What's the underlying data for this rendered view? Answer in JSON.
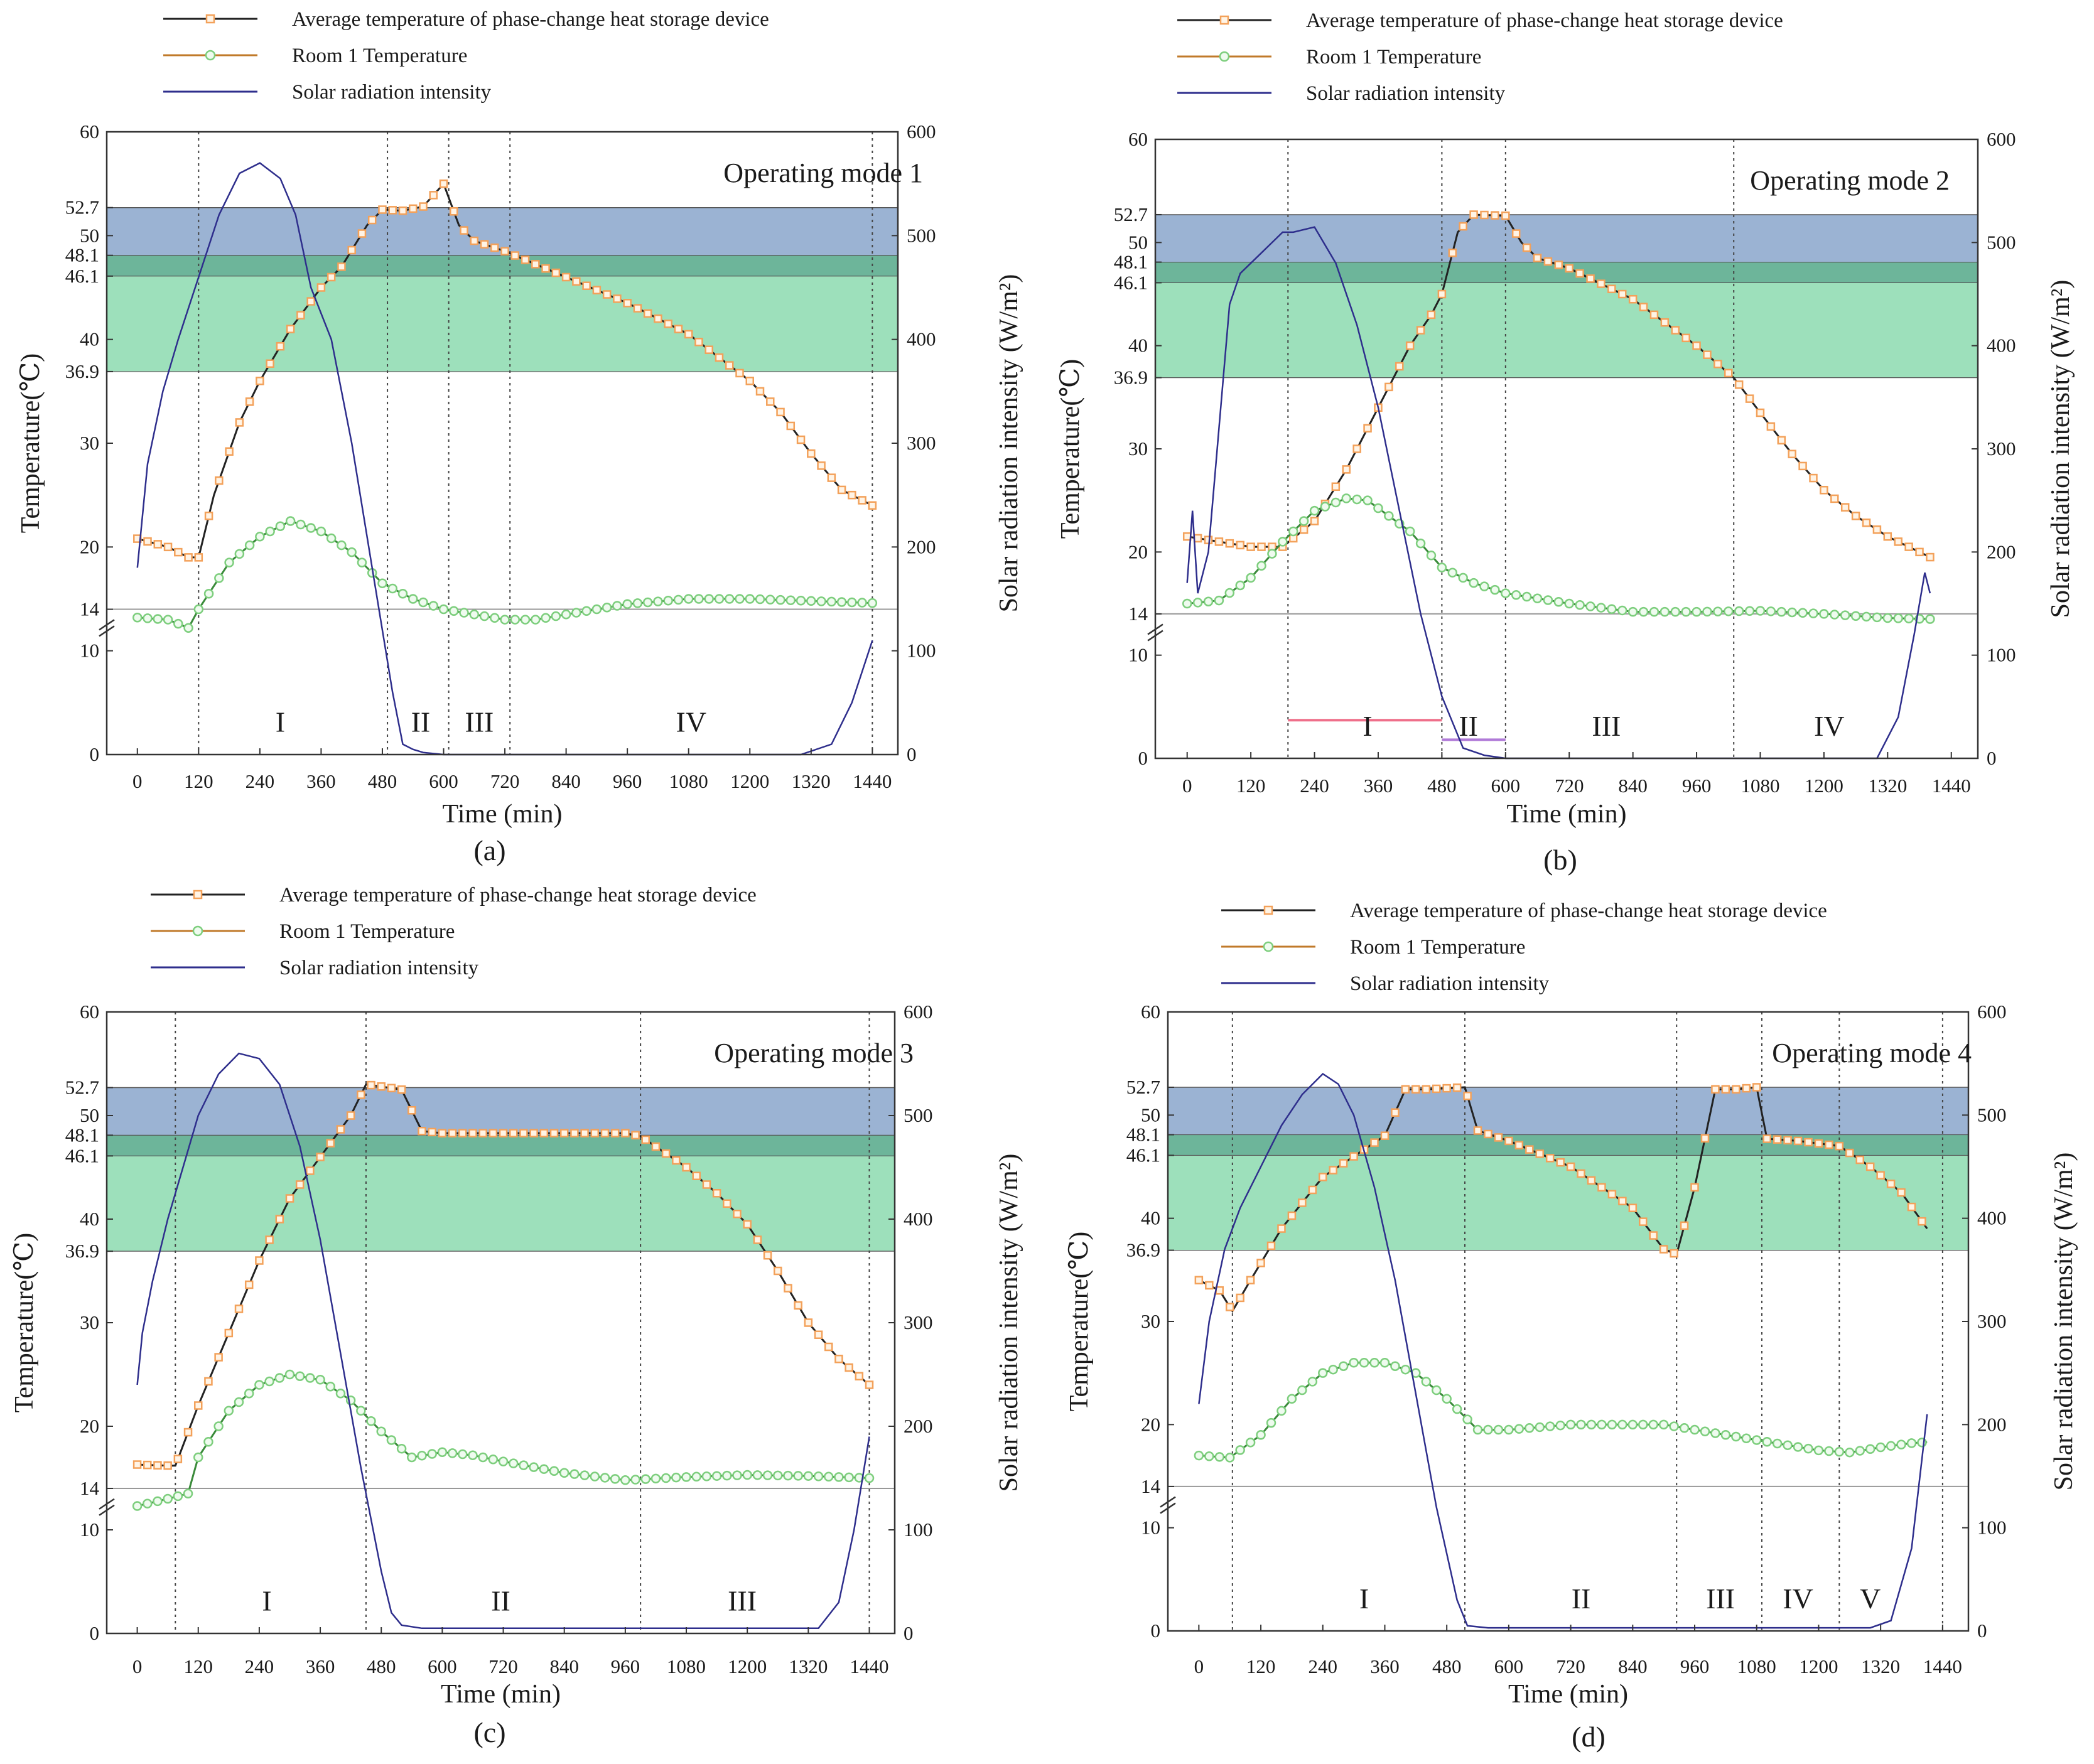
{
  "figure": {
    "captions": [
      "(a)",
      "(b)",
      "(c)",
      "(d)"
    ]
  },
  "colors": {
    "phase_band": "#9bb3d3",
    "overlap_band": "#6db59a",
    "storage_band": "#9de0bb",
    "pcm_line": "#222222",
    "pcm_marker": "#f3a15a",
    "room_line": "#c07a2a",
    "room_marker": "#7dce7d",
    "solar_line": "#2e2e8c",
    "axis": "#333333",
    "guide": "#888888",
    "mode2_bar1": "#ef6f8a",
    "mode2_bar2": "#b07ad8"
  },
  "chart_data": [
    {
      "type": "line",
      "panel": "(a)",
      "title": "Operating mode 1",
      "legend": [
        "Average temperature of phase-change heat storage device",
        "Room 1 Temperature",
        "Solar radiation intensity"
      ],
      "xlabel": "Time (min)",
      "ylabel": "Temperature(℃)",
      "y2label": "Solar radiation intensity (W/m²)",
      "xlim": [
        -60,
        1490
      ],
      "ylim": [
        0,
        60
      ],
      "y2lim": [
        0,
        600
      ],
      "x_ticks": [
        "0",
        "120",
        "240",
        "360",
        "480",
        "600",
        "720",
        "840",
        "960",
        "1080",
        "1200",
        "1320",
        "1440"
      ],
      "y_ticks": [
        "0",
        "10",
        "14",
        "20",
        "30",
        "36.9",
        "40",
        "46.1",
        "48.1",
        "50",
        "52.7",
        "60"
      ],
      "y2_ticks": [
        "0",
        "100",
        "200",
        "300",
        "400",
        "500",
        "600"
      ],
      "bands": [
        [
          36.9,
          48.1
        ],
        [
          46.1,
          52.7
        ]
      ],
      "stage_lines": [
        120,
        490,
        610,
        730,
        1440
      ],
      "stage_labels": [
        {
          "label": "I",
          "x": 280
        },
        {
          "label": "II",
          "x": 555
        },
        {
          "label": "III",
          "x": 670
        },
        {
          "label": "IV",
          "x": 1085
        }
      ],
      "series": [
        {
          "name": "Average temperature of phase-change heat storage device",
          "x": [
            0,
            60,
            100,
            120,
            150,
            200,
            240,
            300,
            360,
            400,
            450,
            480,
            520,
            560,
            600,
            630,
            660,
            720,
            840,
            960,
            1080,
            1200,
            1260,
            1320,
            1380,
            1440
          ],
          "y": [
            20.8,
            20,
            19,
            19,
            25,
            32,
            36,
            41,
            45,
            47,
            51,
            52.5,
            52.4,
            52.8,
            55,
            51,
            49.5,
            48.5,
            46,
            43.5,
            40.5,
            36,
            33,
            29,
            25.5,
            24
          ]
        },
        {
          "name": "Room 1 Temperature",
          "x": [
            0,
            60,
            100,
            120,
            180,
            240,
            300,
            360,
            420,
            480,
            540,
            600,
            660,
            720,
            780,
            840,
            960,
            1080,
            1200,
            1320,
            1440
          ],
          "y": [
            13.2,
            13,
            12.2,
            14,
            18.5,
            21,
            22.5,
            21.5,
            19.5,
            16.5,
            15,
            14,
            13.5,
            13,
            13,
            13.5,
            14.5,
            15,
            15,
            14.8,
            14.6
          ]
        },
        {
          "name": "Solar radiation intensity",
          "axis": "right",
          "x": [
            0,
            20,
            50,
            80,
            120,
            160,
            200,
            240,
            280,
            310,
            340,
            380,
            420,
            460,
            500,
            520,
            540,
            560,
            600,
            700,
            800,
            900,
            1000,
            1100,
            1200,
            1300,
            1360,
            1400,
            1440
          ],
          "y": [
            180,
            280,
            350,
            400,
            460,
            520,
            560,
            570,
            555,
            520,
            450,
            400,
            300,
            180,
            60,
            10,
            5,
            2,
            0,
            0,
            0,
            0,
            0,
            0,
            0,
            0,
            10,
            50,
            110
          ]
        }
      ]
    },
    {
      "type": "line",
      "panel": "(b)",
      "title": "Operating mode 2",
      "legend": [
        "Average temperature of phase-change heat storage device",
        "Room 1 Temperature",
        "Solar radiation intensity"
      ],
      "xlabel": "Time (min)",
      "ylabel": "Temperature(℃)",
      "y2label": "Solar radiation intensity (W/m²)",
      "xlim": [
        -60,
        1490
      ],
      "ylim": [
        0,
        60
      ],
      "y2lim": [
        0,
        600
      ],
      "x_ticks": [
        "0",
        "120",
        "240",
        "360",
        "480",
        "600",
        "720",
        "840",
        "960",
        "1080",
        "1200",
        "1320",
        "1440"
      ],
      "y_ticks": [
        "0",
        "10",
        "14",
        "20",
        "30",
        "36.9",
        "40",
        "46.1",
        "48.1",
        "50",
        "52.7",
        "60"
      ],
      "y2_ticks": [
        "0",
        "100",
        "200",
        "300",
        "400",
        "500",
        "600"
      ],
      "bands": [
        [
          36.9,
          48.1
        ],
        [
          46.1,
          52.7
        ]
      ],
      "stage_lines": [
        190,
        480,
        600,
        1030
      ],
      "stage_labels": [
        {
          "label": "I",
          "x": 340
        },
        {
          "label": "II",
          "x": 530
        },
        {
          "label": "III",
          "x": 790
        },
        {
          "label": "IV",
          "x": 1210
        }
      ],
      "stage_bars": [
        {
          "from": 190,
          "to": 480,
          "y": 3.7,
          "color": "#ef6f8a"
        },
        {
          "from": 480,
          "to": 600,
          "y": 1.8,
          "color": "#b07ad8"
        }
      ],
      "series": [
        {
          "name": "Average temperature of phase-change heat storage device",
          "x": [
            0,
            60,
            120,
            180,
            240,
            300,
            360,
            420,
            460,
            480,
            510,
            540,
            600,
            630,
            660,
            720,
            840,
            960,
            1030,
            1080,
            1140,
            1200,
            1260,
            1320,
            1380,
            1400
          ],
          "y": [
            21.5,
            21,
            20.5,
            20.5,
            23,
            28,
            34,
            40,
            43,
            45,
            51,
            52.7,
            52.6,
            50,
            48.5,
            47.5,
            44.5,
            40,
            36.9,
            33.5,
            29.5,
            26,
            23.5,
            21.5,
            20,
            19.5
          ]
        },
        {
          "name": "Room 1 Temperature",
          "x": [
            0,
            60,
            120,
            180,
            240,
            300,
            340,
            420,
            480,
            540,
            600,
            720,
            840,
            960,
            1080,
            1200,
            1320,
            1400
          ],
          "y": [
            15,
            15.3,
            17.5,
            21,
            24,
            25.2,
            25,
            22,
            18.5,
            17,
            16,
            15,
            14.2,
            14.2,
            14.3,
            14,
            13.6,
            13.5
          ]
        },
        {
          "name": "Solar radiation intensity",
          "axis": "right",
          "x": [
            0,
            10,
            20,
            40,
            60,
            80,
            100,
            140,
            180,
            200,
            240,
            280,
            320,
            360,
            400,
            440,
            480,
            520,
            560,
            600,
            700,
            800,
            900,
            1000,
            1100,
            1200,
            1300,
            1340,
            1370,
            1390,
            1400
          ],
          "y": [
            170,
            240,
            160,
            200,
            320,
            440,
            470,
            490,
            510,
            510,
            515,
            480,
            420,
            340,
            240,
            140,
            60,
            10,
            3,
            0,
            0,
            0,
            0,
            0,
            0,
            0,
            0,
            40,
            120,
            180,
            160
          ]
        }
      ]
    },
    {
      "type": "line",
      "panel": "(c)",
      "title": "Operating mode 3",
      "legend": [
        "Average temperature of phase-change heat storage device",
        "Room 1 Temperature",
        "Solar radiation intensity"
      ],
      "xlabel": "Time (min)",
      "ylabel": "Temperature(℃)",
      "y2label": "Solar radiation intensity (W/m²)",
      "xlim": [
        -60,
        1490
      ],
      "ylim": [
        0,
        60
      ],
      "y2lim": [
        0,
        600
      ],
      "x_ticks": [
        "0",
        "120",
        "240",
        "360",
        "480",
        "600",
        "720",
        "840",
        "960",
        "1080",
        "1200",
        "1320",
        "1440"
      ],
      "y_ticks": [
        "0",
        "10",
        "14",
        "20",
        "30",
        "36.9",
        "40",
        "46.1",
        "48.1",
        "50",
        "52.7",
        "60"
      ],
      "y2_ticks": [
        "0",
        "100",
        "200",
        "300",
        "400",
        "500",
        "600"
      ],
      "bands": [
        [
          36.9,
          48.1
        ],
        [
          46.1,
          52.7
        ]
      ],
      "stage_lines": [
        75,
        450,
        990,
        1440
      ],
      "stage_labels": [
        {
          "label": "I",
          "x": 255
        },
        {
          "label": "II",
          "x": 715
        },
        {
          "label": "III",
          "x": 1190
        }
      ],
      "series": [
        {
          "name": "Average temperature of phase-change heat storage device",
          "x": [
            0,
            60,
            75,
            120,
            180,
            240,
            300,
            360,
            420,
            450,
            480,
            520,
            560,
            600,
            720,
            840,
            960,
            990,
            1080,
            1140,
            1200,
            1260,
            1320,
            1380,
            1440
          ],
          "y": [
            16.3,
            16.2,
            16.2,
            22,
            29,
            36,
            42,
            46,
            50,
            53,
            52.8,
            52.5,
            48.5,
            48.3,
            48.3,
            48.3,
            48.3,
            48,
            45,
            42.5,
            39.5,
            35,
            30,
            26.5,
            24
          ]
        },
        {
          "name": "Room 1 Temperature",
          "x": [
            0,
            60,
            100,
            120,
            180,
            240,
            300,
            360,
            420,
            480,
            540,
            600,
            660,
            720,
            840,
            960,
            1080,
            1200,
            1320,
            1440
          ],
          "y": [
            12.3,
            13,
            13.5,
            17,
            21.5,
            24,
            25,
            24.5,
            22.5,
            19.5,
            17,
            17.5,
            17.2,
            16.6,
            15.5,
            14.8,
            15.1,
            15.3,
            15.2,
            15
          ]
        },
        {
          "name": "Solar radiation intensity",
          "axis": "right",
          "x": [
            0,
            10,
            30,
            60,
            90,
            120,
            160,
            200,
            240,
            280,
            320,
            360,
            400,
            440,
            480,
            500,
            520,
            560,
            600,
            700,
            800,
            900,
            1000,
            1100,
            1200,
            1300,
            1340,
            1380,
            1410,
            1440
          ],
          "y": [
            240,
            290,
            340,
            400,
            450,
            500,
            540,
            560,
            555,
            530,
            470,
            380,
            270,
            160,
            60,
            20,
            8,
            5,
            5,
            5,
            5,
            5,
            5,
            5,
            5,
            5,
            5,
            30,
            100,
            190
          ]
        }
      ]
    },
    {
      "type": "line",
      "panel": "(d)",
      "title": "Operating mode 4",
      "legend": [
        "Average temperature of phase-change heat storage device",
        "Room 1 Temperature",
        "Solar radiation intensity"
      ],
      "xlabel": "Time (min)",
      "ylabel": "Temperature(℃)",
      "y2label": "Solar radiation intensity (W/m²)",
      "xlim": [
        -60,
        1490
      ],
      "ylim": [
        0,
        60
      ],
      "y2lim": [
        0,
        600
      ],
      "x_ticks": [
        "0",
        "120",
        "240",
        "360",
        "480",
        "600",
        "720",
        "840",
        "960",
        "1080",
        "1200",
        "1320",
        "1440"
      ],
      "y_ticks": [
        "0",
        "10",
        "14",
        "20",
        "30",
        "36.9",
        "40",
        "46.1",
        "48.1",
        "50",
        "52.7",
        "60"
      ],
      "y2_ticks": [
        "0",
        "100",
        "200",
        "300",
        "400",
        "500",
        "600"
      ],
      "bands": [
        [
          36.9,
          48.1
        ],
        [
          46.1,
          52.7
        ]
      ],
      "stage_lines": [
        65,
        515,
        925,
        1090,
        1240,
        1440
      ],
      "stage_labels": [
        {
          "label": "I",
          "x": 320
        },
        {
          "label": "II",
          "x": 740
        },
        {
          "label": "III",
          "x": 1010
        },
        {
          "label": "IV",
          "x": 1160
        },
        {
          "label": "V",
          "x": 1300
        }
      ],
      "series": [
        {
          "name": "Average temperature of phase-change heat storage device",
          "x": [
            0,
            40,
            65,
            100,
            160,
            240,
            300,
            360,
            400,
            440,
            480,
            515,
            540,
            600,
            720,
            840,
            900,
            925,
            960,
            1000,
            1040,
            1080,
            1100,
            1160,
            1240,
            1300,
            1360,
            1410
          ],
          "y": [
            34,
            33,
            31,
            34,
            39,
            44,
            46,
            48,
            52.5,
            52.5,
            52.6,
            52.7,
            48.5,
            47.5,
            45,
            41,
            37,
            36.5,
            43,
            52.5,
            52.5,
            52.7,
            47.7,
            47.5,
            47,
            45,
            42.5,
            39
          ]
        },
        {
          "name": "Room 1 Temperature",
          "x": [
            0,
            60,
            120,
            180,
            240,
            300,
            360,
            420,
            480,
            540,
            600,
            720,
            840,
            900,
            960,
            1080,
            1200,
            1260,
            1320,
            1380,
            1410
          ],
          "y": [
            17,
            16.8,
            19,
            22.5,
            25,
            26,
            26,
            25,
            22.5,
            19.5,
            19.5,
            20,
            20,
            20,
            19.5,
            18.5,
            17.5,
            17.3,
            17.8,
            18.2,
            18.3
          ]
        },
        {
          "name": "Solar radiation intensity",
          "axis": "right",
          "x": [
            0,
            20,
            50,
            80,
            120,
            160,
            200,
            240,
            270,
            300,
            340,
            380,
            420,
            460,
            500,
            520,
            560,
            600,
            700,
            800,
            900,
            1000,
            1100,
            1200,
            1300,
            1340,
            1380,
            1410
          ],
          "y": [
            220,
            300,
            370,
            410,
            450,
            490,
            520,
            540,
            530,
            500,
            430,
            340,
            230,
            120,
            30,
            5,
            3,
            3,
            3,
            3,
            3,
            3,
            3,
            3,
            3,
            10,
            80,
            210
          ]
        }
      ]
    }
  ]
}
